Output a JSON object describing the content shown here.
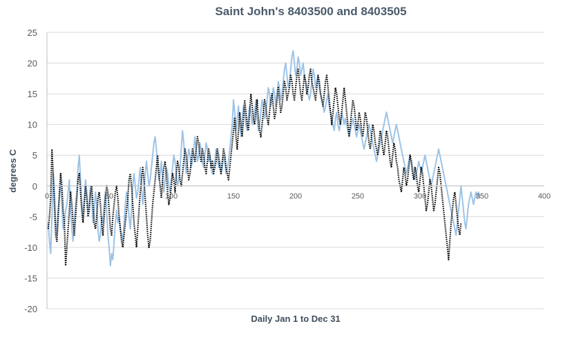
{
  "chart_data": {
    "type": "line",
    "title": "Saint John's 8403500 and 8403505",
    "xlabel": "Daily Jan 1 to Dec 31",
    "ylabel": "degrees C",
    "xlim": [
      0,
      400
    ],
    "ylim": [
      -20,
      25
    ],
    "x_ticks": [
      "0",
      "50",
      "100",
      "150",
      "200",
      "250",
      "300",
      "350",
      "400"
    ],
    "y_ticks": [
      "25",
      "20",
      "15",
      "10",
      "5",
      "0",
      "-5",
      "-10",
      "-15",
      "-20"
    ],
    "grid": "horizontal",
    "legend": "none",
    "colors": {
      "series_a": "#9dc3e6",
      "series_b": "#000000",
      "grid": "#d9d9d9",
      "axis": "#bfbfbf"
    },
    "series": [
      {
        "style": "solid",
        "color": "#9dc3e6",
        "x_start": 1,
        "x_step": 1,
        "values": [
          -6,
          -9,
          -11,
          -5,
          2,
          -1,
          -6,
          -8,
          -4,
          -2,
          1,
          -3,
          -7,
          -6,
          -4,
          -3,
          -1,
          1,
          -4,
          -7,
          -9,
          -6,
          -3,
          -1,
          3,
          5,
          1,
          -3,
          -5,
          -2,
          1,
          -1,
          -4,
          -3,
          0,
          -2,
          -6,
          -4,
          -1,
          -3,
          -7,
          -9,
          -8,
          -5,
          -6,
          -3,
          -1,
          -4,
          -8,
          -10,
          -13,
          -11,
          -12,
          -9,
          -6,
          -4,
          -6,
          -5,
          -7,
          -8,
          -9,
          -6,
          -3,
          -1,
          -2,
          -5,
          -7,
          -4,
          0,
          2,
          0,
          -2,
          -1,
          1,
          3,
          0,
          -3,
          -1,
          2,
          4,
          2,
          0,
          1,
          3,
          5,
          7,
          8,
          6,
          3,
          1,
          2,
          4,
          1,
          -1,
          1,
          3,
          2,
          0,
          -1,
          1,
          3,
          5,
          4,
          2,
          0,
          1,
          3,
          6,
          9,
          7,
          4,
          2,
          4,
          6,
          5,
          3,
          4,
          6,
          8,
          6,
          4,
          5,
          7,
          6,
          4,
          3,
          5,
          7,
          6,
          4,
          5,
          3,
          2,
          3,
          4,
          6,
          5,
          3,
          4,
          2,
          3,
          5,
          4,
          2,
          3,
          4,
          6,
          8,
          10,
          14,
          12,
          9,
          11,
          13,
          10,
          8,
          11,
          13,
          12,
          10,
          9,
          11,
          13,
          12,
          10,
          11,
          12,
          14,
          11,
          9,
          10,
          12,
          14,
          13,
          11,
          12,
          14,
          16,
          15,
          13,
          14,
          16,
          15,
          13,
          15,
          17,
          16,
          14,
          15,
          17,
          19,
          20,
          18,
          16,
          17,
          19,
          21,
          22,
          20,
          18,
          19,
          21,
          20,
          18,
          19,
          20,
          18,
          17,
          16,
          15,
          14,
          15,
          17,
          19,
          18,
          16,
          17,
          18,
          16,
          15,
          14,
          13,
          12,
          13,
          14,
          15,
          13,
          12,
          11,
          10,
          9,
          11,
          12,
          10,
          9,
          10,
          12,
          11,
          10,
          11,
          10,
          9,
          8,
          9,
          10,
          11,
          10,
          9,
          8,
          9,
          10,
          9,
          8,
          7,
          6,
          7,
          8,
          9,
          10,
          9,
          8,
          7,
          6,
          5,
          4,
          5,
          6,
          7,
          8,
          9,
          10,
          11,
          12,
          11,
          10,
          9,
          8,
          7,
          8,
          9,
          10,
          9,
          8,
          7,
          6,
          5,
          4,
          3,
          2,
          3,
          4,
          5,
          4,
          3,
          2,
          1,
          2,
          3,
          4,
          3,
          2,
          3,
          4,
          5,
          4,
          3,
          2,
          1,
          0,
          1,
          2,
          3,
          4,
          5,
          6,
          5,
          4,
          3,
          2,
          1,
          0,
          -1,
          -2,
          -3,
          -4,
          -5,
          -6,
          -7,
          -8,
          -6,
          -4,
          -2,
          0,
          -2,
          -4,
          -6,
          -7,
          -5,
          -3,
          -2,
          -1,
          -2,
          -3,
          -2,
          -1,
          -2,
          -1,
          -2
        ]
      },
      {
        "style": "dotted",
        "color": "#000000",
        "x_start": 1,
        "x_step": 1,
        "values": [
          -7,
          -5,
          -2,
          6,
          2,
          -3,
          -8,
          -9,
          -5,
          -1,
          2,
          0,
          -4,
          -6,
          -13,
          -10,
          -7,
          -4,
          -1,
          -3,
          -6,
          -8,
          -5,
          -2,
          1,
          2,
          -1,
          -4,
          -6,
          -3,
          0,
          -2,
          -5,
          -4,
          -1,
          0,
          -3,
          -6,
          -7,
          -5,
          -2,
          -1,
          -3,
          -6,
          -8,
          -5,
          -2,
          0,
          -1,
          -4,
          -7,
          -8,
          -5,
          -3,
          -1,
          0,
          -2,
          -5,
          -7,
          -9,
          -10,
          -8,
          -6,
          -4,
          -2,
          1,
          2,
          0,
          -3,
          -6,
          -8,
          -10,
          -7,
          -4,
          -1,
          1,
          3,
          1,
          -2,
          -5,
          -8,
          -10,
          -9,
          -6,
          -3,
          -1,
          1,
          3,
          5,
          2,
          0,
          -2,
          1,
          3,
          4,
          2,
          -1,
          -3,
          -2,
          0,
          2,
          1,
          -1,
          2,
          4,
          3,
          1,
          0,
          2,
          4,
          6,
          5,
          3,
          1,
          2,
          4,
          6,
          5,
          4,
          6,
          8,
          7,
          5,
          4,
          6,
          5,
          3,
          2,
          4,
          6,
          5,
          3,
          4,
          2,
          3,
          4,
          6,
          5,
          3,
          2,
          4,
          6,
          5,
          3,
          2,
          1,
          3,
          5,
          7,
          9,
          11,
          8,
          6,
          9,
          12,
          10,
          8,
          11,
          14,
          12,
          10,
          9,
          12,
          15,
          13,
          11,
          10,
          12,
          14,
          11,
          9,
          8,
          10,
          12,
          14,
          13,
          11,
          10,
          12,
          14,
          15,
          13,
          11,
          12,
          14,
          16,
          14,
          12,
          13,
          15,
          17,
          16,
          14,
          15,
          16,
          18,
          17,
          15,
          14,
          16,
          18,
          19,
          17,
          15,
          14,
          16,
          18,
          17,
          15,
          16,
          18,
          19,
          17,
          16,
          15,
          14,
          16,
          18,
          17,
          15,
          14,
          13,
          15,
          17,
          18,
          16,
          14,
          12,
          10,
          12,
          14,
          16,
          15,
          13,
          11,
          10,
          12,
          14,
          16,
          14,
          12,
          10,
          8,
          10,
          12,
          14,
          13,
          11,
          9,
          10,
          12,
          11,
          9,
          8,
          10,
          12,
          11,
          9,
          7,
          6,
          8,
          10,
          9,
          7,
          6,
          5,
          7,
          9,
          8,
          6,
          5,
          7,
          9,
          8,
          6,
          4,
          3,
          5,
          7,
          6,
          4,
          3,
          1,
          0,
          -1,
          1,
          3,
          2,
          0,
          1,
          3,
          5,
          4,
          2,
          1,
          3,
          2,
          0,
          -1,
          1,
          3,
          2,
          0,
          -2,
          -4,
          -3,
          -1,
          1,
          0,
          -2,
          -4,
          -3,
          -1,
          1,
          3,
          2,
          0,
          -2,
          -4,
          -6,
          -8,
          -10,
          -12,
          -9,
          -6,
          -4,
          -2,
          -1,
          -3,
          -5,
          -7,
          -8,
          -6
        ]
      }
    ]
  }
}
